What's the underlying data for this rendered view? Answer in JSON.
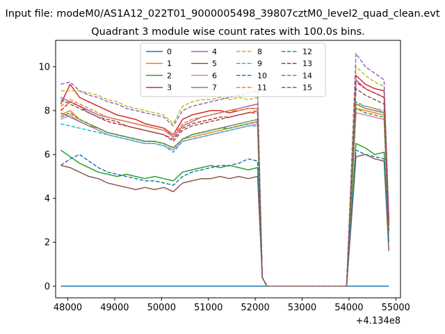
{
  "page": {
    "suptitle": "Input file: modeM0/AS1A12_022T01_9000005498_39807cztM0_level2_quad_clean.evt",
    "title": "Quadrant 3 module wise count rates with 100.0s bins."
  },
  "chart_data": {
    "type": "line",
    "title": "Quadrant 3 module wise count rates with 100.0s bins.",
    "xlabel": "",
    "ylabel": "",
    "x_offset_label": "+4.134e8",
    "xlim": [
      47740,
      55100
    ],
    "ylim": [
      -0.53,
      11.2
    ],
    "xticks": [
      48000,
      49000,
      50000,
      51000,
      52000,
      53000,
      54000,
      55000
    ],
    "yticks": [
      0,
      2,
      4,
      6,
      8,
      10
    ],
    "grid": false,
    "legend_position": "top-center",
    "legend_columns": 4,
    "x": [
      47850,
      48050,
      48250,
      48450,
      48650,
      48850,
      49050,
      49250,
      49450,
      49650,
      49850,
      50050,
      50250,
      50450,
      50650,
      50850,
      51050,
      51250,
      51450,
      51650,
      51850,
      52050,
      52150,
      52250,
      53950,
      54150,
      54350,
      54550,
      54750,
      54850
    ],
    "series": [
      {
        "name": "0",
        "color": "#1f77b4",
        "dash": "solid",
        "values": [
          0,
          0,
          0,
          0,
          0,
          0,
          0,
          0,
          0,
          0,
          0,
          0,
          0,
          0,
          0,
          0,
          0,
          0,
          0,
          0,
          0,
          0,
          0,
          0,
          0,
          0,
          0,
          0,
          0,
          0
        ]
      },
      {
        "name": "1",
        "color": "#ff7f0e",
        "dash": "solid",
        "values": [
          7.8,
          8.0,
          7.6,
          7.4,
          7.2,
          7.0,
          6.9,
          6.8,
          6.7,
          6.6,
          6.6,
          6.5,
          6.3,
          6.7,
          6.8,
          6.9,
          7.0,
          7.1,
          7.2,
          7.3,
          7.4,
          7.5,
          0.4,
          0,
          0,
          8.1,
          8.0,
          7.9,
          7.8,
          2.5
        ]
      },
      {
        "name": "2",
        "color": "#2ca02c",
        "dash": "solid",
        "values": [
          6.2,
          5.9,
          5.6,
          5.4,
          5.2,
          5.1,
          5.0,
          5.1,
          5.0,
          4.9,
          5.0,
          4.9,
          4.8,
          5.2,
          5.3,
          5.4,
          5.5,
          5.4,
          5.5,
          5.4,
          5.3,
          5.4,
          0.4,
          0,
          0,
          6.5,
          6.3,
          6.0,
          6.1,
          2.0
        ]
      },
      {
        "name": "3",
        "color": "#d62728",
        "dash": "solid",
        "values": [
          8.3,
          9.2,
          8.6,
          8.4,
          8.2,
          8.0,
          7.8,
          7.7,
          7.6,
          7.4,
          7.3,
          7.2,
          6.9,
          7.6,
          7.8,
          7.9,
          8.0,
          8.0,
          7.9,
          8.0,
          8.1,
          8.1,
          0.4,
          0,
          0,
          9.6,
          9.2,
          9.0,
          8.9,
          3.0
        ]
      },
      {
        "name": "4",
        "color": "#9467bd",
        "dash": "solid",
        "values": [
          8.6,
          8.4,
          8.2,
          8.0,
          7.8,
          7.7,
          7.6,
          7.5,
          7.4,
          7.3,
          7.2,
          7.1,
          6.8,
          7.3,
          7.5,
          7.7,
          7.8,
          7.9,
          8.0,
          8.1,
          8.2,
          8.3,
          0.4,
          0,
          0,
          9.4,
          9.0,
          8.8,
          8.6,
          3.0
        ]
      },
      {
        "name": "5",
        "color": "#8c564b",
        "dash": "solid",
        "values": [
          5.5,
          5.4,
          5.2,
          5.0,
          4.9,
          4.7,
          4.6,
          4.5,
          4.4,
          4.5,
          4.4,
          4.5,
          4.3,
          4.7,
          4.8,
          4.9,
          4.9,
          5.0,
          4.9,
          5.0,
          4.9,
          5.0,
          0.4,
          0,
          0,
          5.9,
          6.0,
          5.8,
          5.7,
          1.6
        ]
      },
      {
        "name": "6",
        "color": "#e377c2",
        "dash": "solid",
        "values": [
          7.6,
          7.8,
          7.5,
          7.3,
          7.1,
          6.9,
          6.8,
          6.7,
          6.6,
          6.5,
          6.5,
          6.4,
          6.2,
          6.6,
          6.7,
          6.8,
          6.9,
          7.0,
          7.1,
          7.2,
          7.3,
          7.4,
          0.4,
          0,
          0,
          7.9,
          7.8,
          7.7,
          7.6,
          2.4
        ]
      },
      {
        "name": "7",
        "color": "#7f7f7f",
        "dash": "solid",
        "values": [
          7.9,
          7.7,
          7.5,
          7.3,
          7.2,
          7.0,
          6.9,
          6.8,
          6.7,
          6.6,
          6.6,
          6.5,
          6.3,
          6.7,
          6.9,
          7.0,
          7.1,
          7.2,
          7.3,
          7.4,
          7.5,
          7.6,
          0.4,
          0,
          0,
          8.3,
          8.1,
          8.0,
          7.9,
          2.6
        ]
      },
      {
        "name": "8",
        "color": "#bcbd22",
        "dash": "dashed",
        "values": [
          8.9,
          8.9,
          8.9,
          8.8,
          8.7,
          8.5,
          8.4,
          8.2,
          8.1,
          8.0,
          7.9,
          7.8,
          7.4,
          8.2,
          8.4,
          8.5,
          8.5,
          8.6,
          8.5,
          8.6,
          8.5,
          8.6,
          0.4,
          0,
          0,
          10.0,
          9.6,
          9.3,
          9.1,
          3.1
        ]
      },
      {
        "name": "9",
        "color": "#17becf",
        "dash": "dashed",
        "values": [
          7.4,
          7.3,
          7.2,
          7.1,
          7.0,
          6.9,
          6.8,
          6.7,
          6.6,
          6.5,
          6.5,
          6.4,
          6.1,
          6.6,
          6.7,
          6.8,
          6.9,
          7.0,
          7.1,
          7.2,
          7.3,
          7.3,
          0.4,
          0,
          0,
          8.4,
          8.2,
          8.1,
          7.9,
          2.7
        ]
      },
      {
        "name": "10",
        "color": "#1f77b4",
        "dash": "dashed",
        "values": [
          5.5,
          5.8,
          6.0,
          5.7,
          5.4,
          5.2,
          5.1,
          5.0,
          4.9,
          4.8,
          4.8,
          4.7,
          4.6,
          5.0,
          5.2,
          5.3,
          5.4,
          5.5,
          5.5,
          5.6,
          5.8,
          5.7,
          0.4,
          0,
          0,
          6.2,
          6.0,
          5.9,
          5.8,
          2.0
        ]
      },
      {
        "name": "11",
        "color": "#ff7f0e",
        "dash": "dashed",
        "values": [
          8.2,
          8.5,
          8.3,
          8.1,
          7.9,
          7.7,
          7.6,
          7.5,
          7.4,
          7.3,
          7.2,
          7.1,
          6.9,
          7.4,
          7.6,
          7.7,
          7.8,
          7.9,
          8.0,
          8.0,
          8.1,
          8.1,
          0.4,
          0,
          0,
          8.3,
          8.2,
          8.1,
          8.0,
          2.6
        ]
      },
      {
        "name": "12",
        "color": "#2ca02c",
        "dash": "dashed",
        "values": [
          7.7,
          7.9,
          7.6,
          7.4,
          7.2,
          7.0,
          6.9,
          6.8,
          6.7,
          6.6,
          6.6,
          6.5,
          6.3,
          6.7,
          6.9,
          7.0,
          7.1,
          7.2,
          7.2,
          7.3,
          7.4,
          7.5,
          0.4,
          0,
          0,
          8.1,
          7.9,
          7.8,
          7.7,
          2.5
        ]
      },
      {
        "name": "13",
        "color": "#d62728",
        "dash": "dashed",
        "values": [
          8.0,
          8.4,
          8.2,
          7.9,
          7.7,
          7.5,
          7.4,
          7.3,
          7.2,
          7.1,
          7.0,
          6.9,
          6.7,
          7.2,
          7.4,
          7.5,
          7.6,
          7.7,
          7.7,
          7.8,
          7.9,
          7.9,
          0.4,
          0,
          0,
          9.3,
          9.0,
          8.8,
          8.6,
          2.9
        ]
      },
      {
        "name": "14",
        "color": "#9467bd",
        "dash": "dashed",
        "values": [
          9.2,
          9.3,
          8.9,
          8.7,
          8.6,
          8.4,
          8.3,
          8.1,
          8.0,
          7.9,
          7.8,
          7.7,
          7.3,
          8.0,
          8.2,
          8.3,
          8.4,
          8.5,
          8.6,
          8.7,
          8.8,
          8.9,
          0.4,
          0,
          0,
          10.6,
          10.0,
          9.7,
          9.4,
          3.2
        ]
      },
      {
        "name": "15",
        "color": "#8c564b",
        "dash": "dashed",
        "values": [
          8.5,
          8.3,
          8.1,
          7.9,
          7.7,
          7.6,
          7.5,
          7.3,
          7.2,
          7.1,
          7.0,
          6.9,
          6.6,
          7.1,
          7.3,
          7.4,
          7.5,
          7.6,
          7.7,
          7.8,
          7.9,
          8.0,
          0.4,
          0,
          0,
          9.0,
          8.7,
          8.5,
          8.3,
          2.8
        ]
      }
    ]
  }
}
